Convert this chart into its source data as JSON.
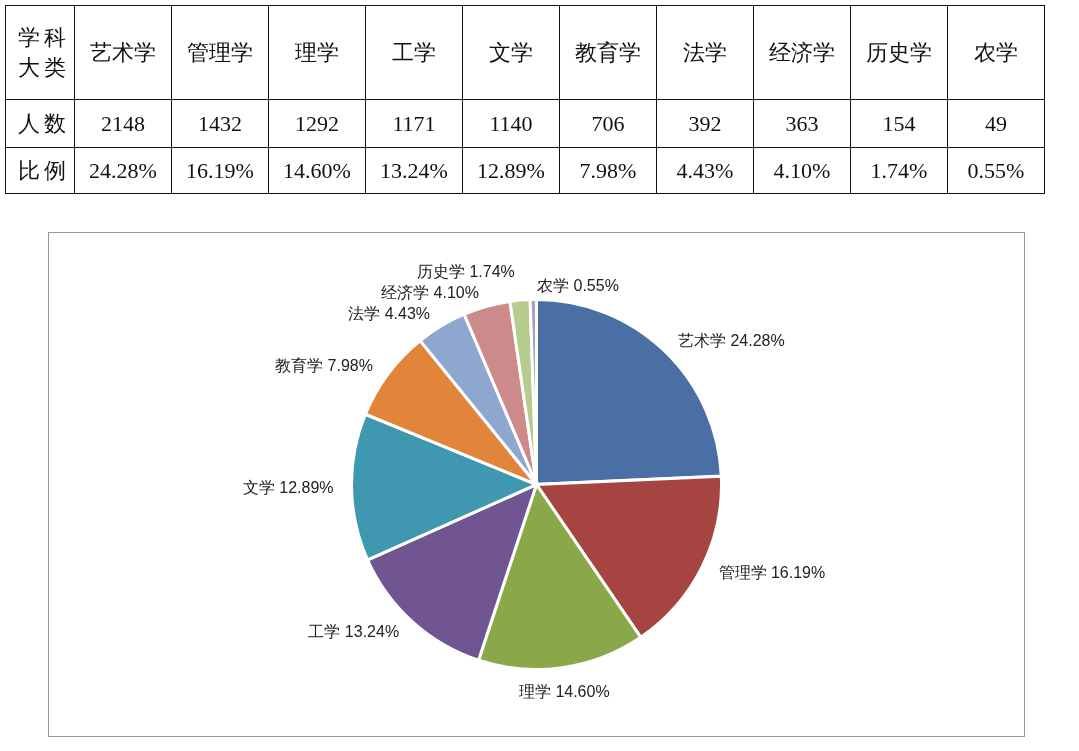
{
  "chart_data": [
    {
      "type": "other",
      "xlabel": "学科大类",
      "categories": [
        "艺术学",
        "管理学",
        "理学",
        "工学",
        "文学",
        "教育学",
        "法学",
        "经济学",
        "历史学",
        "农学"
      ],
      "series": [
        {
          "name": "人数",
          "values": [
            2148,
            1432,
            1292,
            1171,
            1140,
            706,
            392,
            363,
            154,
            49
          ]
        },
        {
          "name": "比例",
          "values": [
            24.28,
            16.19,
            14.6,
            13.24,
            12.89,
            7.98,
            4.43,
            4.1,
            1.74,
            0.55
          ],
          "value_labels": [
            "24.28%",
            "16.19%",
            "14.60%",
            "13.24%",
            "12.89%",
            "7.98%",
            "4.43%",
            "4.10%",
            "1.74%",
            "0.55%"
          ]
        }
      ],
      "data_labels": true
    },
    {
      "type": "pie",
      "categories": [
        "艺术学",
        "管理学",
        "理学",
        "工学",
        "文学",
        "教育学",
        "法学",
        "经济学",
        "历史学",
        "农学"
      ],
      "values": [
        24.28,
        16.19,
        14.6,
        13.24,
        12.89,
        7.98,
        4.43,
        4.1,
        1.74,
        0.55
      ],
      "value_labels": [
        "24.28%",
        "16.19%",
        "14.60%",
        "13.24%",
        "12.89%",
        "7.98%",
        "4.43%",
        "4.10%",
        "1.74%",
        "0.55%"
      ],
      "colors": [
        "#4a6fa5",
        "#a64442",
        "#8aa84a",
        "#705592",
        "#3f98b0",
        "#e0853a",
        "#8da7cf",
        "#cc8a8a",
        "#b5cc8e",
        "#a99cc7"
      ]
    }
  ]
}
